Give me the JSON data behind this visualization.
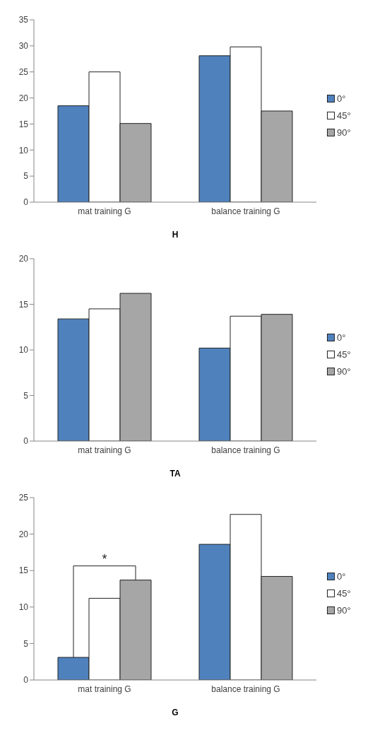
{
  "chart_data": [
    {
      "type": "bar",
      "xlabel": "H",
      "categories": [
        "mat training G",
        "balance training G"
      ],
      "series": [
        {
          "name": "0°",
          "color": "#4f81bd",
          "values": [
            18.5,
            28.1
          ]
        },
        {
          "name": "45°",
          "color": "#ffffff",
          "values": [
            25,
            29.8
          ]
        },
        {
          "name": "90°",
          "color": "#a6a6a6",
          "values": [
            15.1,
            17.5
          ]
        }
      ],
      "ylim": [
        0,
        35
      ],
      "yticks": [
        0,
        5,
        10,
        15,
        20,
        25,
        30,
        35
      ],
      "legend": "right"
    },
    {
      "type": "bar",
      "xlabel": "TA",
      "categories": [
        "mat training G",
        "balance training G"
      ],
      "series": [
        {
          "name": "0°",
          "color": "#4f81bd",
          "values": [
            13.4,
            10.2
          ]
        },
        {
          "name": "45°",
          "color": "#ffffff",
          "values": [
            14.5,
            13.7
          ]
        },
        {
          "name": "90°",
          "color": "#a6a6a6",
          "values": [
            16.2,
            13.9
          ]
        }
      ],
      "ylim": [
        0,
        20
      ],
      "yticks": [
        0,
        5,
        10,
        15,
        20
      ],
      "legend": "right"
    },
    {
      "type": "bar",
      "xlabel": "G",
      "categories": [
        "mat training G",
        "balance training G"
      ],
      "series": [
        {
          "name": "0°",
          "color": "#4f81bd",
          "values": [
            3.1,
            18.6
          ]
        },
        {
          "name": "45°",
          "color": "#ffffff",
          "values": [
            11.2,
            22.7
          ]
        },
        {
          "name": "90°",
          "color": "#a6a6a6",
          "values": [
            13.7,
            14.2
          ]
        }
      ],
      "ylim": [
        0,
        25
      ],
      "yticks": [
        0,
        5,
        10,
        15,
        20,
        25
      ],
      "legend": "right",
      "annotations": [
        "*"
      ]
    }
  ]
}
